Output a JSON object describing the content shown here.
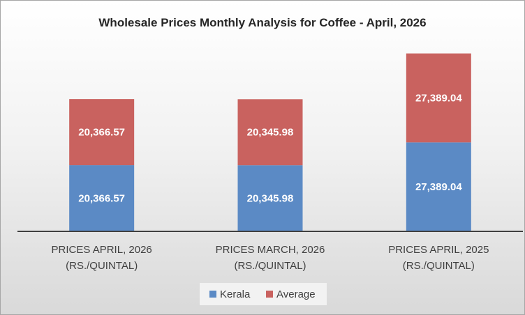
{
  "chart_data": {
    "type": "bar",
    "stacked": true,
    "title": "Wholesale Prices Monthly Analysis for Coffee - April, 2026",
    "xlabel": "",
    "ylabel": "",
    "categories": [
      [
        "PRICES APRIL, 2026",
        "(RS./QUINTAL)"
      ],
      [
        "PRICES MARCH, 2026",
        "(RS./QUINTAL)"
      ],
      [
        "PRICES APRIL, 2025",
        "(RS./QUINTAL)"
      ]
    ],
    "series": [
      {
        "name": "Kerala",
        "color": "#5b8ac5",
        "values": [
          20366.57,
          20345.98,
          27389.04
        ],
        "labels": [
          "20,366.57",
          "20,345.98",
          "27,389.04"
        ]
      },
      {
        "name": "Average",
        "color": "#c9625f",
        "values": [
          20366.57,
          20345.98,
          27389.04
        ],
        "labels": [
          "20,366.57",
          "20,345.98",
          "27,389.04"
        ]
      }
    ],
    "ylim": [
      0,
      62000
    ],
    "grid": false,
    "legend_position": "bottom"
  }
}
